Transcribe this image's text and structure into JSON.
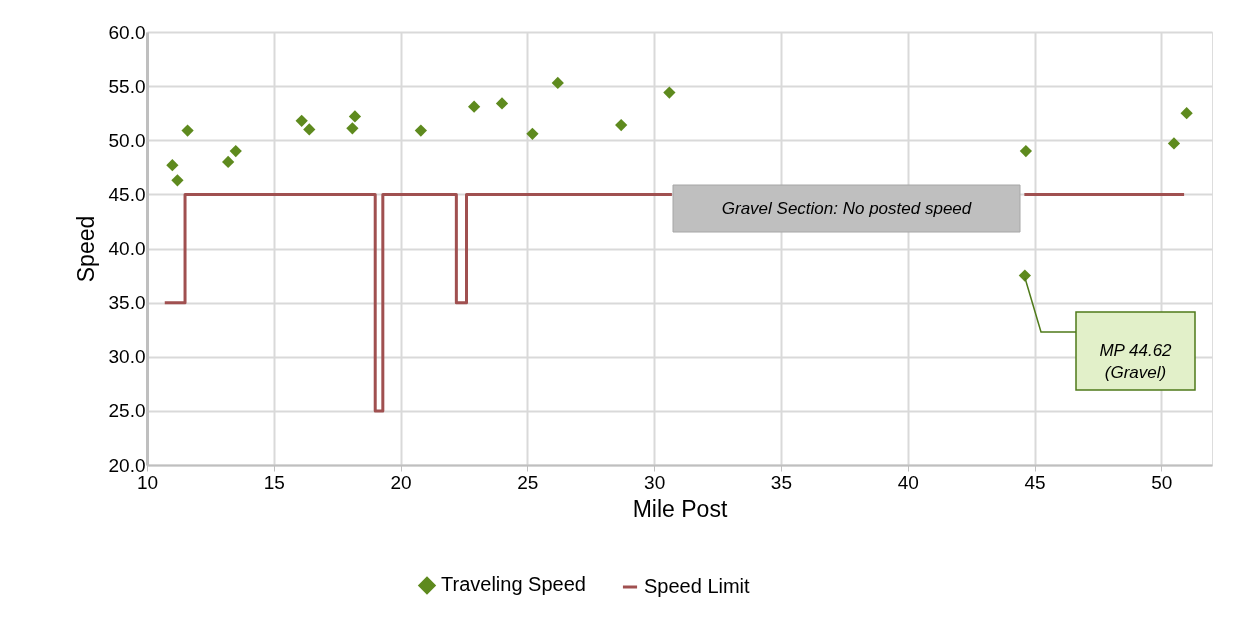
{
  "chart_data": {
    "type": "scatter",
    "xlabel": "Mile Post",
    "ylabel": "Speed",
    "xlim": [
      10,
      52
    ],
    "xticks": [
      10,
      15,
      20,
      25,
      30,
      35,
      40,
      45,
      50
    ],
    "ylim": [
      20,
      60
    ],
    "yticks": [
      {
        "value": 20,
        "label": "20.0"
      },
      {
        "value": 25,
        "label": "25.0"
      },
      {
        "value": 30,
        "label": "30.0"
      },
      {
        "value": 35,
        "label": "35.0"
      },
      {
        "value": 40,
        "label": "40.0"
      },
      {
        "value": 45,
        "label": "45.0"
      },
      {
        "value": 50,
        "label": "50.0"
      },
      {
        "value": 55,
        "label": "55.0"
      },
      {
        "value": 60,
        "label": "60.0"
      }
    ],
    "grid": true,
    "legend": "bottom",
    "marker": "diamond",
    "series": [
      {
        "name": "Traveling Speed",
        "color": "#5e8a1e",
        "x": [
          11.0,
          11.2,
          11.6,
          13.2,
          13.5,
          16.1,
          16.4,
          18.1,
          18.2,
          20.8,
          22.9,
          24.0,
          25.2,
          26.2,
          28.7,
          30.6,
          44.66,
          44.62,
          50.5,
          51.0
        ],
        "values": [
          47.7,
          46.3,
          50.9,
          48.0,
          49.0,
          51.8,
          51.0,
          51.1,
          52.2,
          50.9,
          53.1,
          53.4,
          50.6,
          55.3,
          51.4,
          54.4,
          49.0,
          37.5,
          49.7,
          52.5
        ]
      },
      {
        "name": "Speed Limit",
        "type": "line",
        "color": "#a05050",
        "line_style": "solid",
        "marker": "none",
        "x": [
          10.7,
          11.5,
          11.5,
          19.0,
          19.0,
          19.3,
          19.3,
          22.2,
          22.2,
          22.6,
          22.6,
          30.7,
          37.7,
          44.6,
          50.9
        ],
        "values": [
          35,
          35,
          45,
          45,
          25,
          25,
          45,
          45,
          35,
          35,
          45,
          45,
          null,
          45,
          45
        ]
      }
    ],
    "annotations": [
      "Gravel Section: No posted speed",
      "MP 44.62 (Gravel)"
    ]
  }
}
